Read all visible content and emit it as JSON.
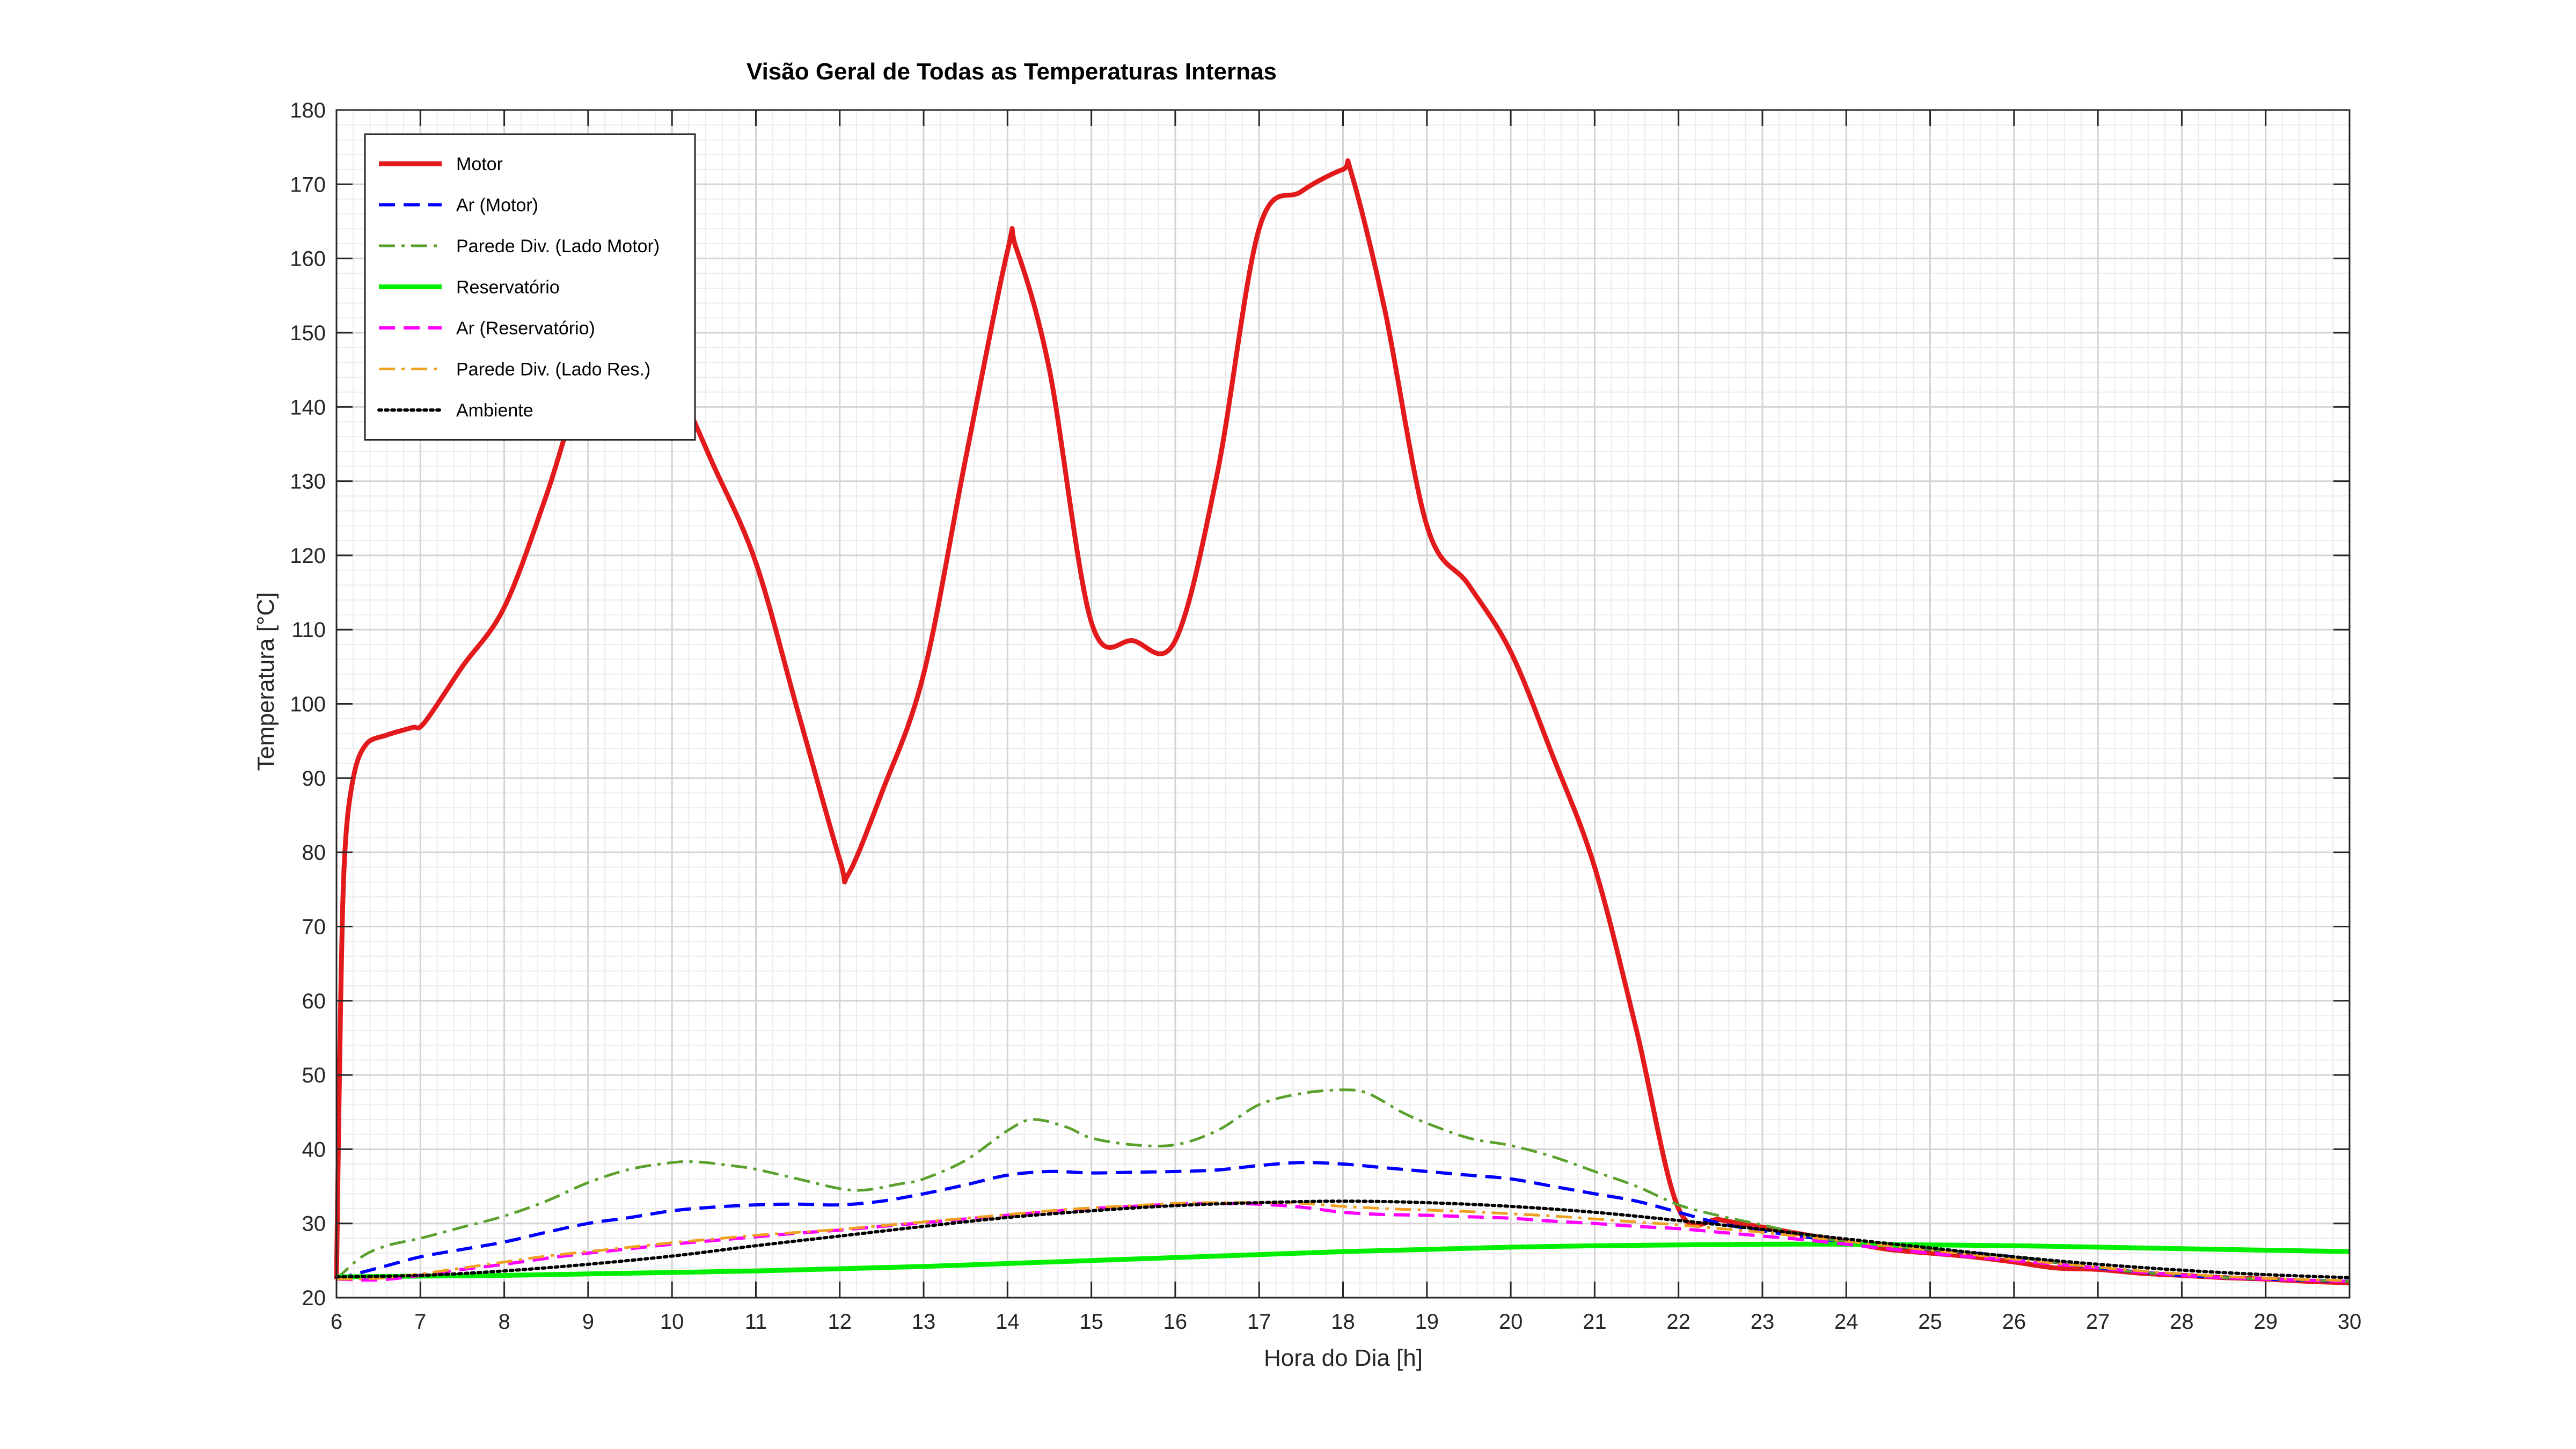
{
  "chart_data": {
    "type": "line",
    "title": "Visão Geral de Todas as Temperaturas Internas",
    "xlabel": "Hora do Dia [h]",
    "ylabel": "Temperatura [°C]",
    "xlim": [
      6,
      30
    ],
    "ylim": [
      20,
      180
    ],
    "xticks": [
      "6",
      "7",
      "8",
      "9",
      "10",
      "11",
      "12",
      "13",
      "14",
      "15",
      "16",
      "17",
      "18",
      "19",
      "20",
      "21",
      "22",
      "23",
      "24",
      "25",
      "26",
      "27",
      "28",
      "29",
      "30"
    ],
    "yticks": [
      "20",
      "30",
      "40",
      "50",
      "60",
      "70",
      "80",
      "90",
      "100",
      "110",
      "120",
      "130",
      "140",
      "150",
      "160",
      "170",
      "180"
    ],
    "grid": true,
    "minor_grid": true,
    "legend_position": "top-left",
    "series": [
      {
        "name": "Motor",
        "color": "#e31a1c",
        "style": "solid",
        "x": [
          6,
          6.05,
          6.1,
          6.2,
          6.35,
          6.6,
          6.9,
          7.05,
          7.5,
          8,
          8.5,
          9,
          9.5,
          10,
          10.5,
          11,
          11.5,
          12,
          12.1,
          12.5,
          13,
          13.5,
          14,
          14.1,
          14.5,
          15,
          15.5,
          16,
          16.5,
          17,
          17.5,
          18,
          18.1,
          18.5,
          19,
          19.5,
          20,
          20.5,
          21,
          21.5,
          22,
          22.5,
          23,
          23.5,
          24,
          24.5,
          25,
          25.5,
          26,
          26.5,
          27,
          27.5,
          28,
          28.5,
          29,
          29.5,
          30
        ],
        "y": [
          22.5,
          60,
          80,
          90,
          94.5,
          95.8,
          96.8,
          97.5,
          105,
          113,
          128,
          145,
          150,
          144,
          132,
          119,
          99,
          79,
          77,
          88,
          104,
          133,
          161,
          161.5,
          145,
          111,
          108.5,
          108.5,
          131,
          164,
          169,
          172,
          171.5,
          153,
          124,
          116,
          107,
          93,
          78,
          56,
          32,
          30.5,
          29.5,
          28.5,
          27.5,
          26.5,
          26,
          25.5,
          24.8,
          24,
          23.8,
          23.3,
          23,
          22.7,
          22.5,
          22.2,
          22
        ]
      },
      {
        "name": "Ar (Motor)",
        "color": "#0000ff",
        "style": "dash",
        "x": [
          6,
          6.5,
          7,
          7.5,
          8,
          8.5,
          9,
          9.5,
          10,
          10.5,
          11,
          11.5,
          12,
          12.5,
          13,
          13.5,
          14,
          14.5,
          15,
          15.5,
          16,
          16.5,
          17,
          17.5,
          18,
          18.5,
          19,
          19.5,
          20,
          20.5,
          21,
          21.5,
          22,
          22.5,
          23,
          23.5,
          24,
          25,
          26,
          27,
          28,
          29,
          30
        ],
        "y": [
          22.5,
          24,
          25.5,
          26.5,
          27.5,
          28.8,
          30,
          30.8,
          31.7,
          32.2,
          32.5,
          32.6,
          32.5,
          33,
          34,
          35.2,
          36.5,
          37,
          36.8,
          36.9,
          37,
          37.2,
          37.8,
          38.2,
          38,
          37.5,
          37,
          36.5,
          36,
          35,
          34,
          33,
          31.5,
          30,
          29,
          28.2,
          27.5,
          26.5,
          25.5,
          24,
          23,
          22.5,
          22.2
        ]
      },
      {
        "name": "Parede Div. (Lado Motor)",
        "color": "#5aa02c",
        "style": "dashdot",
        "x": [
          6,
          6.3,
          6.6,
          7,
          7.5,
          8,
          8.5,
          9,
          9.5,
          10,
          10.3,
          10.7,
          11,
          11.5,
          12,
          12.3,
          12.7,
          13,
          13.5,
          14,
          14.3,
          14.7,
          15,
          15.5,
          16,
          16.5,
          17,
          17.5,
          18,
          18.3,
          18.7,
          19,
          19.5,
          20,
          20.5,
          21,
          21.5,
          22,
          22.5,
          23,
          23.5,
          24,
          25,
          26,
          27,
          28,
          29,
          30
        ],
        "y": [
          22.5,
          25.5,
          27,
          28,
          29.5,
          31,
          33,
          35.5,
          37.3,
          38.2,
          38.3,
          37.8,
          37.3,
          36,
          34.7,
          34.5,
          35.3,
          36,
          38.5,
          42.5,
          44,
          43,
          41.5,
          40.6,
          40.6,
          42.5,
          46,
          47.5,
          48,
          47.5,
          45,
          43.5,
          41.5,
          40.5,
          39,
          37,
          35,
          32.5,
          31,
          29.8,
          28.5,
          27.5,
          26.5,
          25.5,
          24,
          23,
          22.5,
          22.2
        ]
      },
      {
        "name": "Reservatório",
        "color": "#00ee00",
        "style": "solid",
        "x": [
          6,
          7,
          8,
          9,
          10,
          11,
          12,
          13,
          14,
          15,
          16,
          17,
          18,
          19,
          20,
          21,
          22,
          23,
          24,
          25,
          26,
          27,
          28,
          29,
          30
        ],
        "y": [
          22.8,
          22.9,
          23,
          23.2,
          23.4,
          23.6,
          23.9,
          24.2,
          24.6,
          25,
          25.4,
          25.8,
          26.2,
          26.5,
          26.8,
          27,
          27.1,
          27.2,
          27.2,
          27.1,
          27,
          26.8,
          26.6,
          26.4,
          26.2
        ]
      },
      {
        "name": "Ar (Reservatório)",
        "color": "#ff00ff",
        "style": "dash",
        "x": [
          6,
          6.5,
          7,
          7.5,
          8,
          8.5,
          9,
          9.5,
          10,
          10.5,
          11,
          11.5,
          12,
          12.5,
          13,
          13.5,
          14,
          14.5,
          15,
          15.5,
          16,
          16.5,
          17,
          17.5,
          18,
          18.5,
          19,
          19.5,
          20,
          20.5,
          21,
          21.5,
          22,
          22.5,
          23,
          23.5,
          24,
          25,
          26,
          27,
          28,
          29,
          30
        ],
        "y": [
          22.5,
          22.4,
          23,
          23.8,
          24.5,
          25.3,
          26,
          26.6,
          27.2,
          27.7,
          28.2,
          28.7,
          29.1,
          29.6,
          30.1,
          30.6,
          31.1,
          31.6,
          32,
          32.3,
          32.6,
          32.7,
          32.6,
          32.2,
          31.5,
          31.2,
          31.1,
          30.9,
          30.7,
          30.3,
          30,
          29.6,
          29.3,
          28.8,
          28.3,
          27.8,
          27.2,
          26,
          25,
          24,
          23,
          22.5,
          22.2
        ]
      },
      {
        "name": "Parede Div. (Lado Res.)",
        "color": "#f0a020",
        "style": "dashdot",
        "x": [
          6,
          6.5,
          7,
          7.5,
          8,
          8.5,
          9,
          9.5,
          10,
          10.5,
          11,
          11.5,
          12,
          12.5,
          13,
          13.5,
          14,
          14.5,
          15,
          15.5,
          16,
          16.5,
          17,
          17.5,
          18,
          18.5,
          19,
          19.5,
          20,
          20.5,
          21,
          21.5,
          22,
          22.5,
          23,
          23.5,
          24,
          25,
          26,
          27,
          28,
          29,
          30
        ],
        "y": [
          22.5,
          22.6,
          23.2,
          24,
          24.8,
          25.6,
          26.2,
          26.8,
          27.4,
          27.9,
          28.4,
          28.8,
          29.2,
          29.7,
          30.2,
          30.7,
          31.2,
          31.7,
          32.1,
          32.4,
          32.7,
          32.8,
          32.8,
          32.7,
          32.3,
          32,
          31.8,
          31.6,
          31.3,
          31,
          30.6,
          30.2,
          29.8,
          29.3,
          28.8,
          28.2,
          27.6,
          26.4,
          25.2,
          24.1,
          23.2,
          22.6,
          22.3
        ]
      },
      {
        "name": "Ambiente",
        "color": "#000000",
        "style": "dot",
        "x": [
          6,
          7,
          8,
          9,
          10,
          11,
          12,
          13,
          14,
          15,
          16,
          17,
          18,
          19,
          20,
          21,
          22,
          23,
          24,
          25,
          26,
          27,
          28,
          29,
          30
        ],
        "y": [
          22.8,
          23,
          23.6,
          24.5,
          25.6,
          27,
          28.3,
          29.6,
          30.8,
          31.7,
          32.4,
          32.8,
          33,
          32.8,
          32.3,
          31.5,
          30.4,
          29.2,
          27.9,
          26.7,
          25.5,
          24.5,
          23.7,
          23.1,
          22.7
        ]
      }
    ]
  }
}
